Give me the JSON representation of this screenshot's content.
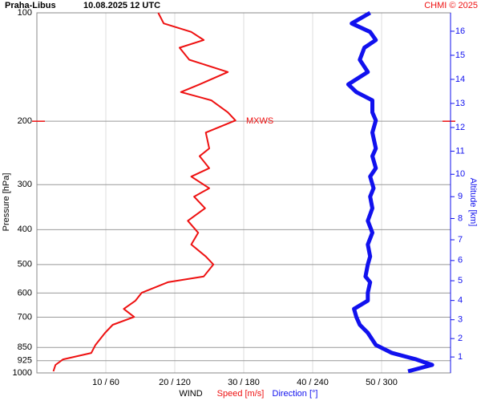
{
  "chart_data": {
    "type": "line",
    "title": "Praha-Libus",
    "subtitle": "10.08.2025 12 UTC",
    "credit": "CHMI © 2025",
    "xlabel": "WIND",
    "ylabel": "Pressure [hPa]",
    "y2label": "Altitude [km]",
    "annotation": {
      "text": "MXWS",
      "y": 200
    },
    "log_y": true,
    "grid": true,
    "xlim": [
      0,
      60
    ],
    "x2lim": [
      0,
      360
    ],
    "xticks": [
      {
        "value": 10,
        "label": "10 / 60"
      },
      {
        "value": 20,
        "label": "20 / 120"
      },
      {
        "value": 30,
        "label": "30 / 180"
      },
      {
        "value": 40,
        "label": "40 / 240"
      },
      {
        "value": 50,
        "label": "50 / 300"
      }
    ],
    "ylim": [
      1000,
      100
    ],
    "yticks": [
      100,
      200,
      300,
      400,
      500,
      600,
      700,
      850,
      925,
      1000
    ],
    "y2ticks": [
      1,
      2,
      3,
      4,
      5,
      6,
      7,
      8,
      9,
      10,
      11,
      12,
      13,
      14,
      15,
      16
    ],
    "y": [
      100,
      107,
      113,
      119,
      125,
      135,
      146,
      158,
      166,
      175,
      189,
      199,
      215,
      238,
      250,
      270,
      285,
      307,
      324,
      349,
      378,
      408,
      440,
      475,
      500,
      540,
      560,
      599,
      630,
      664,
      699,
      735,
      774,
      836,
      880,
      917,
      950,
      990
    ],
    "series": [
      {
        "name": "Speed [m/s]",
        "color": "#ee1111",
        "axis": "x",
        "values": [
          17.6,
          18.4,
          22.4,
          24.2,
          20.7,
          22.1,
          27.7,
          23.6,
          20.9,
          25.3,
          27.7,
          28.8,
          24.5,
          25.0,
          23.6,
          25.0,
          22.4,
          25.0,
          22.8,
          24.4,
          21.9,
          23.4,
          22.4,
          24.5,
          25.6,
          24.2,
          19.0,
          15.2,
          14.3,
          12.6,
          14.1,
          11.0,
          9.9,
          8.5,
          7.9,
          3.8,
          2.7,
          2.4
        ]
      },
      {
        "name": "Direction [°]",
        "color": "#1111ee",
        "axis": "x2",
        "values": [
          290,
          274,
          290,
          295,
          285,
          281,
          288,
          271,
          278,
          292,
          292,
          295,
          292,
          295,
          292,
          295,
          290,
          293,
          290,
          292,
          288,
          292,
          288,
          290,
          288,
          286,
          290,
          288,
          288,
          276,
          278,
          281,
          288,
          295,
          309,
          330,
          344,
          323
        ]
      }
    ]
  }
}
